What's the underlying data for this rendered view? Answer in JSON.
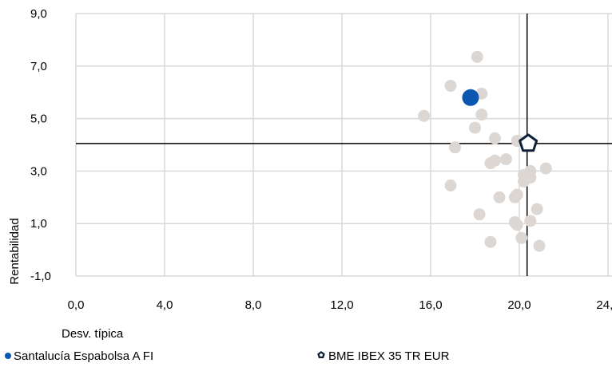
{
  "chart_data": {
    "type": "scatter",
    "xlabel": "Desv. típica",
    "ylabel": "Rentabilidad",
    "xlim": [
      0,
      24
    ],
    "ylim": [
      -1,
      9
    ],
    "x_ticks": [
      0,
      4,
      8,
      12,
      16,
      20,
      24
    ],
    "x_tick_labels": [
      "0,0",
      "4,0",
      "8,0",
      "12,0",
      "16,0",
      "20,0",
      "24,0"
    ],
    "y_ticks": [
      -1,
      1,
      3,
      5,
      7,
      9
    ],
    "y_tick_labels": [
      "-1,0",
      "1,0",
      "3,0",
      "5,0",
      "7,0",
      "9,0"
    ],
    "grid": true,
    "legend_position": "bottom",
    "colors": {
      "peers": "#dcd7d3",
      "fund": "#0a56b0",
      "benchmark": "#0f2137",
      "grid": "#d9d9d9",
      "reference_lines": "#000000"
    },
    "reference_lines": {
      "x": 20.35,
      "y": 4.05
    },
    "series": [
      {
        "role": "peers",
        "points": [
          {
            "x": 18.1,
            "y": 7.35
          },
          {
            "x": 16.9,
            "y": 6.25
          },
          {
            "x": 18.3,
            "y": 5.95
          },
          {
            "x": 18.3,
            "y": 5.15
          },
          {
            "x": 15.7,
            "y": 5.1
          },
          {
            "x": 18.0,
            "y": 4.65
          },
          {
            "x": 18.9,
            "y": 4.25
          },
          {
            "x": 19.9,
            "y": 4.15
          },
          {
            "x": 17.1,
            "y": 3.9
          },
          {
            "x": 19.4,
            "y": 3.45
          },
          {
            "x": 18.9,
            "y": 3.4
          },
          {
            "x": 18.7,
            "y": 3.3
          },
          {
            "x": 21.2,
            "y": 3.1
          },
          {
            "x": 20.5,
            "y": 3.0
          },
          {
            "x": 20.2,
            "y": 2.85
          },
          {
            "x": 20.5,
            "y": 2.75
          },
          {
            "x": 20.2,
            "y": 2.6
          },
          {
            "x": 16.9,
            "y": 2.45
          },
          {
            "x": 19.9,
            "y": 2.1
          },
          {
            "x": 19.8,
            "y": 2.0
          },
          {
            "x": 19.1,
            "y": 2.0
          },
          {
            "x": 20.8,
            "y": 1.55
          },
          {
            "x": 18.2,
            "y": 1.35
          },
          {
            "x": 20.5,
            "y": 1.1
          },
          {
            "x": 19.8,
            "y": 1.05
          },
          {
            "x": 19.9,
            "y": 0.95
          },
          {
            "x": 20.1,
            "y": 0.45
          },
          {
            "x": 18.7,
            "y": 0.3
          },
          {
            "x": 20.9,
            "y": 0.15
          }
        ]
      },
      {
        "role": "fund",
        "name": "Santalucía Espabolsa A FI",
        "points": [
          {
            "x": 17.8,
            "y": 5.8
          }
        ]
      },
      {
        "role": "benchmark",
        "name": "BME IBEX 35 TR EUR",
        "points": [
          {
            "x": 20.4,
            "y": 4.05
          }
        ]
      }
    ]
  }
}
